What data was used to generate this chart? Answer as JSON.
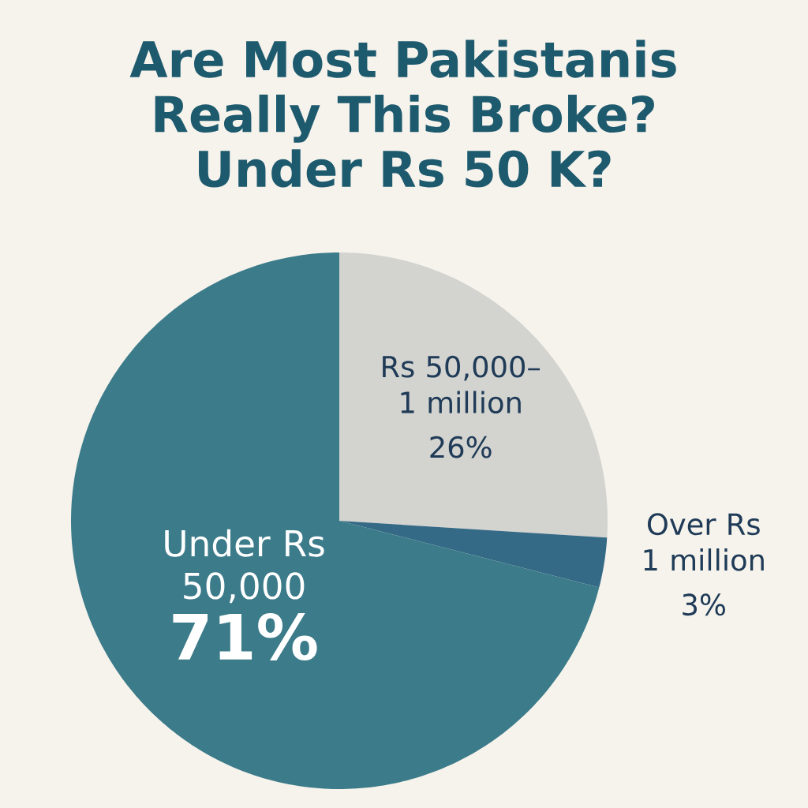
{
  "chart_data": {
    "type": "pie",
    "title": "Are Most Pakistanis Really This Broke? Under Rs 50 K?",
    "categories": [
      "Rs 50,000–1 million",
      "Over Rs 1 million",
      "Under Rs 50,000"
    ],
    "values": [
      26,
      3,
      71
    ],
    "value_labels": [
      "26%",
      "3%",
      "71%"
    ],
    "colors": [
      "#d3d3cf",
      "#356a86",
      "#3c7b8a"
    ]
  }
}
